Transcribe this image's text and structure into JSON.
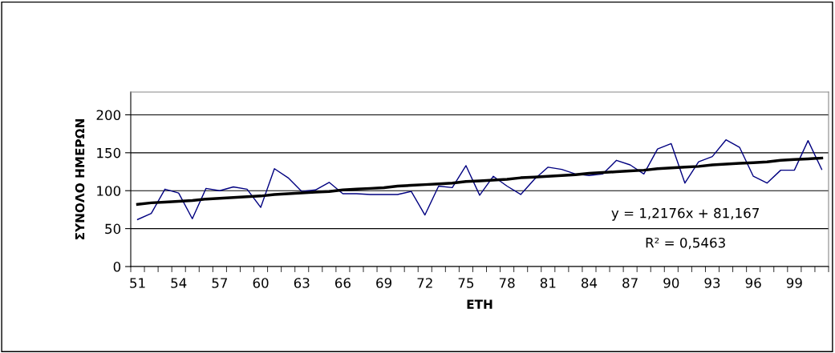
{
  "chart_data": {
    "type": "line",
    "categories": [
      "51",
      null,
      null,
      "54",
      null,
      null,
      "57",
      null,
      null,
      "60",
      null,
      null,
      "63",
      null,
      null,
      "66",
      null,
      null,
      "69",
      null,
      null,
      "72",
      null,
      null,
      "75",
      null,
      null,
      "78",
      null,
      null,
      "81",
      null,
      null,
      "84",
      null,
      null,
      "87",
      null,
      null,
      "90",
      null,
      null,
      "93",
      null,
      null,
      "96",
      null,
      null,
      "99",
      null,
      null
    ],
    "series": [
      {
        "color": "#000080",
        "values": [
          62,
          70,
          102,
          97,
          63,
          103,
          100,
          105,
          102,
          78,
          129,
          117,
          99,
          101,
          111,
          96,
          96,
          95,
          95,
          95,
          99,
          68,
          106,
          104,
          133,
          94,
          119,
          106,
          95,
          115,
          131,
          128,
          122,
          120,
          122,
          140,
          134,
          122,
          155,
          162,
          110,
          138,
          145,
          167,
          157,
          119,
          110,
          127,
          127,
          166,
          128
        ]
      },
      {
        "type": "line",
        "color": "#000000",
        "values": [
          82,
          84,
          85,
          86,
          87,
          89,
          90,
          91,
          92,
          93,
          95,
          96,
          97,
          98,
          99,
          101,
          102,
          103,
          104,
          106,
          107,
          108,
          109,
          110,
          112,
          113,
          114,
          115,
          117,
          118,
          119,
          120,
          121,
          123,
          124,
          125,
          126,
          127,
          129,
          130,
          131,
          132,
          134,
          135,
          136,
          137,
          138,
          140,
          141,
          142,
          143
        ]
      }
    ],
    "xlabel": "ΕΤΗ",
    "ylabel": "ΣΥΝΟΛΟ ΗΜΕΡΩΝ",
    "ylim": [
      0,
      230
    ],
    "yticks": [
      0,
      50,
      100,
      150,
      200
    ],
    "grid": "y",
    "marker": "none",
    "annotations": [
      "y = 1,2176x + 81,167",
      "R² = 0,5463"
    ]
  }
}
